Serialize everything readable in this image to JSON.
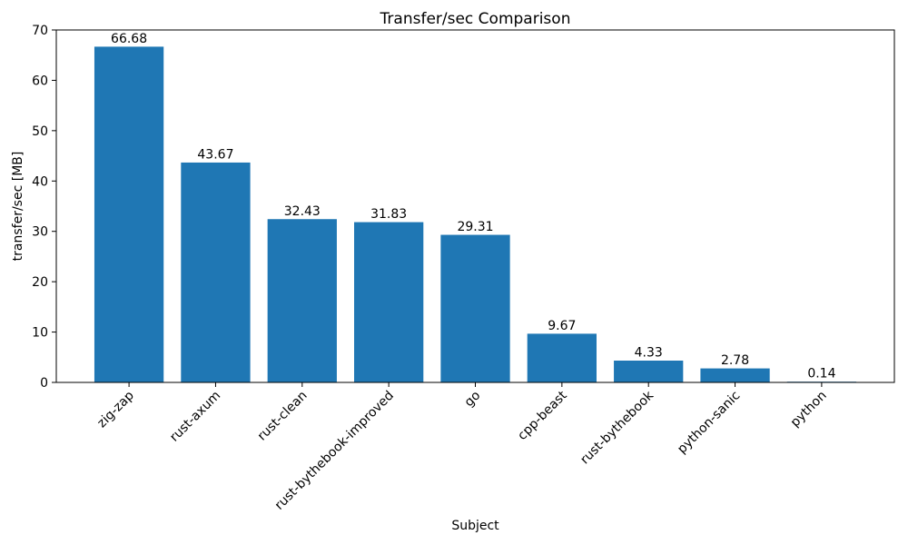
{
  "chart_data": {
    "type": "bar",
    "title": "Transfer/sec Comparison",
    "xlabel": "Subject",
    "ylabel": "transfer/sec [MB]",
    "categories": [
      "zig-zap",
      "rust-axum",
      "rust-clean",
      "rust-bythebook-improved",
      "go",
      "cpp-beast",
      "rust-bythebook",
      "python-sanic",
      "python"
    ],
    "values": [
      66.68,
      43.67,
      32.43,
      31.83,
      29.31,
      9.67,
      4.33,
      2.78,
      0.14
    ],
    "bar_value_labels": [
      "66.68",
      "43.67",
      "32.43",
      "31.83",
      "29.31",
      "9.67",
      "4.33",
      "2.78",
      "0.14"
    ],
    "ylim": [
      0,
      70
    ],
    "yticks": [
      0,
      10,
      20,
      30,
      40,
      50,
      60,
      70
    ],
    "bar_color": "#1f77b4",
    "axis_color": "#000000",
    "grid": false,
    "legend_position": "none",
    "xtick_rotation_deg": 45
  }
}
